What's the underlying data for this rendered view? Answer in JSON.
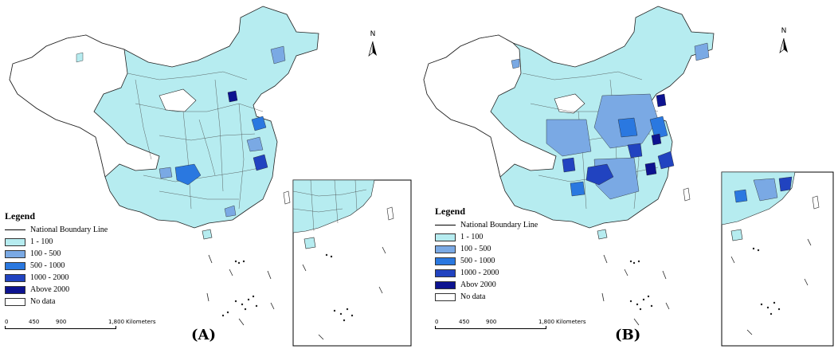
{
  "colors": {
    "c1": "#b6ecf0",
    "c2": "#7aa9e4",
    "c3": "#2a78e0",
    "c4": "#2143c0",
    "c5": "#0d1390",
    "nodata": "#ffffff",
    "border": "#222222"
  },
  "panels": [
    {
      "label": "(A)",
      "north": "N",
      "legend": {
        "title": "Legend",
        "boundary_label": "National Boundary Line",
        "classes": [
          "1 - 100",
          "100 - 500",
          "500 - 1000",
          "1000 - 2000",
          "Above 2000",
          "No data"
        ]
      },
      "scale": {
        "ticks": [
          "0",
          "450",
          "900",
          "1,800"
        ],
        "unit": "Kilometers"
      }
    },
    {
      "label": "(B)",
      "north": "N",
      "legend": {
        "title": "Legend",
        "boundary_label": "National Boundary Line",
        "classes": [
          "1 - 100",
          "100 - 500",
          "500 - 1000",
          "1000 - 2000",
          "Abov 2000",
          "No data"
        ]
      },
      "scale": {
        "ticks": [
          "0",
          "450",
          "900",
          "1,800"
        ],
        "unit": "Kilometers"
      }
    }
  ]
}
